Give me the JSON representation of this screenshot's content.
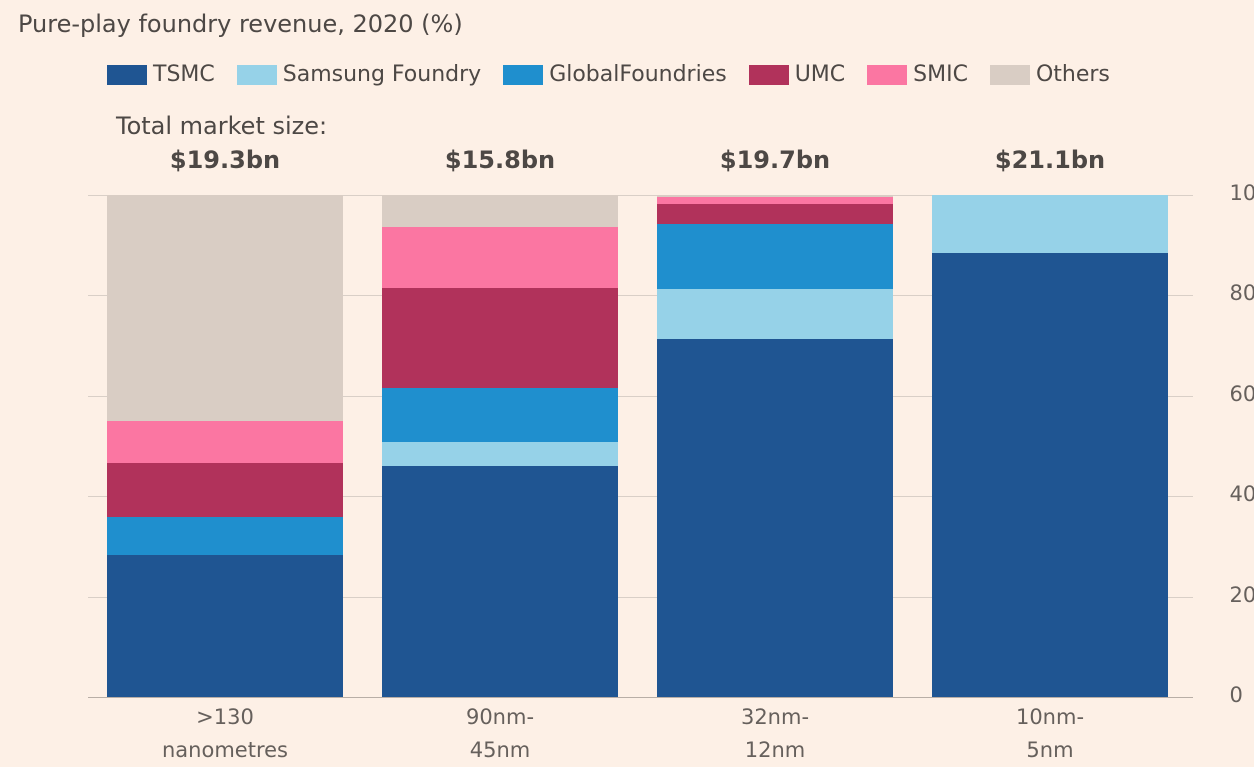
{
  "chart_data": {
    "type": "stacked_bar",
    "title": "Pure-play foundry revenue, 2020 (%)",
    "categories": [
      ">130\nnanometres",
      "90nm-\n45nm",
      "32nm-\n12nm",
      "10nm-\n5nm"
    ],
    "series": [
      {
        "name": "TSMC",
        "color": "#1f5592",
        "values": [
          28.3,
          46.0,
          71.3,
          88.4
        ]
      },
      {
        "name": "Samsung Foundry",
        "color": "#96d2e8",
        "values": [
          0,
          4.8,
          10.0,
          11.6
        ]
      },
      {
        "name": "GlobalFoundries",
        "color": "#1f8fce",
        "values": [
          7.6,
          10.8,
          12.9,
          0
        ]
      },
      {
        "name": "UMC",
        "color": "#b1325b",
        "values": [
          10.7,
          19.9,
          4.0,
          0
        ]
      },
      {
        "name": "SMIC",
        "color": "#fb76a2",
        "values": [
          8.4,
          12.1,
          1.4,
          0
        ]
      },
      {
        "name": "Others",
        "color": "#d9cdc4",
        "values": [
          45.0,
          6.4,
          0.4,
          0
        ]
      }
    ],
    "annotation_heading": "Total market size:",
    "annotations": [
      "$19.3bn",
      "$15.8bn",
      "$19.7bn",
      "$21.1bn"
    ],
    "ylim": [
      0,
      100
    ],
    "yticks": [
      0,
      20,
      40,
      60,
      80,
      100
    ],
    "grid": true,
    "yaxis_side": "right"
  }
}
